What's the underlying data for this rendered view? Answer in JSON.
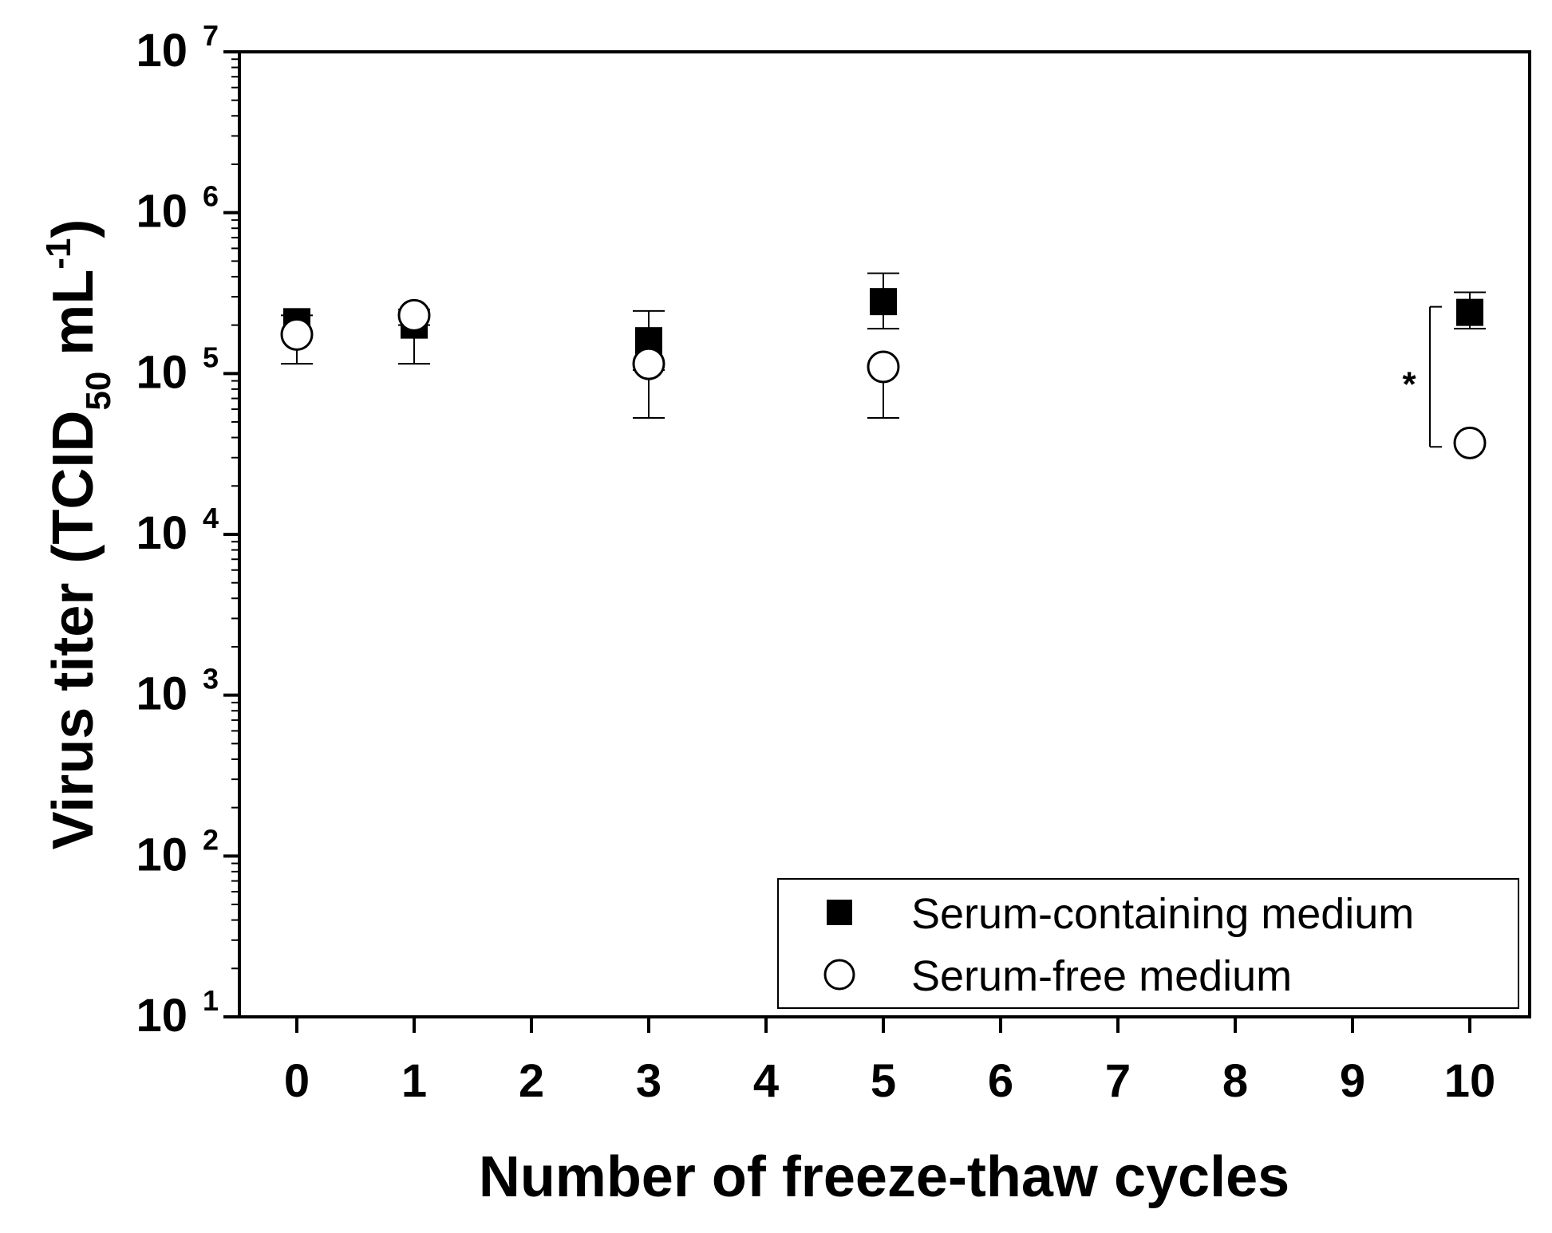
{
  "chart_data": {
    "type": "scatter",
    "title": "",
    "xlabel": "Number of freeze-thaw cycles",
    "ylabel": {
      "prefix": "Virus titer",
      "open_paren": "(",
      "main": "TCID",
      "subscript": "50",
      "unit": " mL",
      "superscript": "-1",
      "close_paren": ")"
    },
    "x_ticks": [
      0,
      1,
      2,
      3,
      4,
      5,
      6,
      7,
      8,
      9,
      10
    ],
    "xlim": [
      -0.5,
      10.5
    ],
    "y_scale": "log",
    "ylim": [
      10,
      10000000
    ],
    "y_ticks": [
      {
        "value": 10,
        "base": "10",
        "exp": "1"
      },
      {
        "value": 100,
        "base": "10",
        "exp": "2"
      },
      {
        "value": 1000,
        "base": "10",
        "exp": "3"
      },
      {
        "value": 10000,
        "base": "10",
        "exp": "4"
      },
      {
        "value": 100000,
        "base": "10",
        "exp": "5"
      },
      {
        "value": 1000000,
        "base": "10",
        "exp": "6"
      },
      {
        "value": 10000000,
        "base": "10",
        "exp": "7"
      }
    ],
    "grid": false,
    "legend_position": "bottom-right",
    "series": [
      {
        "name": "Serum-containing medium",
        "marker": "filled-square",
        "color": "#000000",
        "points": [
          {
            "x": 0,
            "y": 210000,
            "err_upper": 230000,
            "err_lower": 170000
          },
          {
            "x": 1,
            "y": 200000,
            "err_upper": 250000,
            "err_lower": 115000
          },
          {
            "x": 3,
            "y": 160000,
            "err_upper": 245000,
            "err_lower": 105000
          },
          {
            "x": 5,
            "y": 280000,
            "err_upper": 420000,
            "err_lower": 190000
          },
          {
            "x": 10,
            "y": 240000,
            "err_upper": 320000,
            "err_lower": 190000
          }
        ]
      },
      {
        "name": "Serum-free medium",
        "marker": "open-circle",
        "color": "#000000",
        "points": [
          {
            "x": 0,
            "y": 175000,
            "err_upper": 175000,
            "err_lower": 115000
          },
          {
            "x": 1,
            "y": 230000,
            "err_upper": 250000,
            "err_lower": 200000
          },
          {
            "x": 3,
            "y": 115000,
            "err_upper": 115000,
            "err_lower": 53000
          },
          {
            "x": 5,
            "y": 110000,
            "err_upper": 110000,
            "err_lower": 53000
          },
          {
            "x": 10,
            "y": 37000,
            "err_upper": 37000,
            "err_lower": 37000
          }
        ]
      }
    ],
    "annotations": [
      {
        "text": "*",
        "x": 10,
        "y_top": 260000,
        "y_bottom": 35000
      }
    ]
  }
}
